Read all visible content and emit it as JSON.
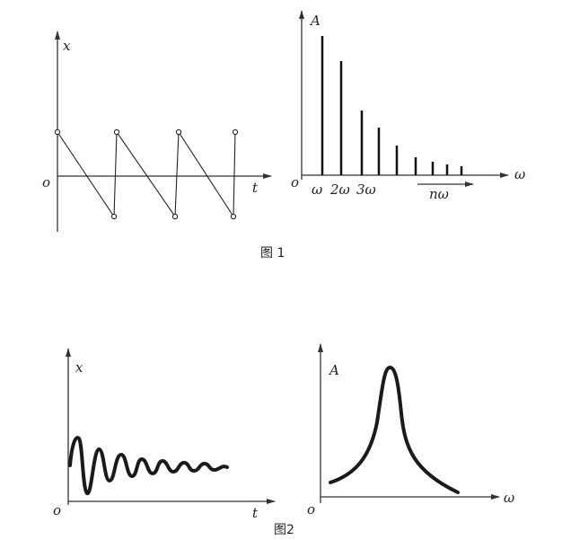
{
  "figure1": {
    "left": {
      "y_label": "x",
      "x_label": "t",
      "origin": "o"
    },
    "right": {
      "y_label": "A",
      "x_label": "ω",
      "origin": "o",
      "harmonics": [
        "ω",
        "2ω",
        "3ω",
        "nω"
      ]
    },
    "caption": "图 1"
  },
  "figure2": {
    "left": {
      "y_label": "x",
      "x_label": "t",
      "origin": "o"
    },
    "right": {
      "y_label": "A",
      "x_label": "ω",
      "origin": "o"
    },
    "caption": "图2"
  }
}
